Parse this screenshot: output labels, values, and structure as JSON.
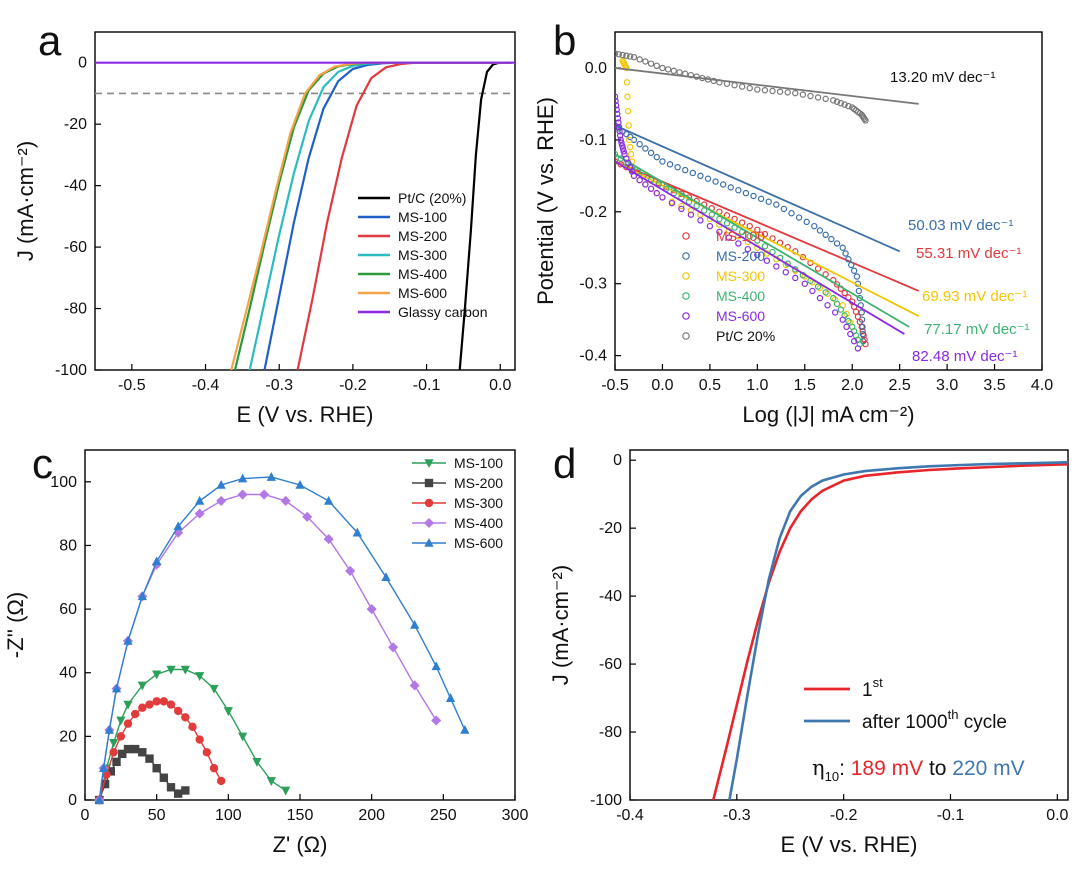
{
  "figure": {
    "panels": {
      "a": {
        "letter": "a"
      },
      "b": {
        "letter": "b"
      },
      "c": {
        "letter": "c"
      },
      "d": {
        "letter": "d"
      }
    }
  },
  "chart_data": [
    {
      "id": "a",
      "type": "line",
      "title": "",
      "xlabel": "E (V vs. RHE)",
      "ylabel": "J (mA·cm⁻²)",
      "xlim": [
        -0.55,
        0.02
      ],
      "ylim": [
        -100,
        10
      ],
      "xticks": [
        -0.5,
        -0.4,
        -0.3,
        -0.2,
        -0.1,
        0.0
      ],
      "xtick_labels": [
        "-0.5",
        "-0.4",
        "-0.3",
        "-0.2",
        "-0.1",
        "0.0"
      ],
      "yticks": [
        0,
        -20,
        -40,
        -60,
        -80,
        -100
      ],
      "ytick_labels": [
        "0",
        "-20",
        "-40",
        "-60",
        "-80",
        "-100"
      ],
      "reference_line": {
        "y": -10,
        "style": "dashed",
        "color": "#888888"
      },
      "legend_position": "right",
      "series": [
        {
          "name": "Pt/C (20%)",
          "color": "#000000",
          "x": [
            -0.055,
            -0.048,
            -0.04,
            -0.033,
            -0.026,
            -0.018,
            -0.01,
            -0.003,
            0.005,
            0.015
          ],
          "y": [
            -100,
            -80,
            -55,
            -30,
            -12,
            -3,
            -0.6,
            -0.1,
            0,
            0
          ]
        },
        {
          "name": "MS-100",
          "color": "#1f5fc8",
          "x": [
            -0.32,
            -0.3,
            -0.28,
            -0.26,
            -0.24,
            -0.22,
            -0.2,
            -0.18,
            -0.16,
            -0.14,
            0.015
          ],
          "y": [
            -100,
            -76,
            -52,
            -31,
            -15,
            -6,
            -2,
            -0.7,
            -0.2,
            0,
            0
          ]
        },
        {
          "name": "MS-200",
          "color": "#e0393e",
          "x": [
            -0.275,
            -0.255,
            -0.235,
            -0.215,
            -0.195,
            -0.175,
            -0.155,
            -0.135,
            -0.115,
            0.015
          ],
          "y": [
            -100,
            -77,
            -52,
            -31,
            -14,
            -5,
            -1.5,
            -0.4,
            0,
            0
          ]
        },
        {
          "name": "MS-300",
          "color": "#2bbbc0",
          "x": [
            -0.34,
            -0.32,
            -0.3,
            -0.28,
            -0.26,
            -0.24,
            -0.22,
            -0.2,
            -0.18,
            -0.16,
            0.015
          ],
          "y": [
            -100,
            -78,
            -56,
            -36,
            -19,
            -8,
            -3,
            -1,
            -0.3,
            0,
            0
          ]
        },
        {
          "name": "MS-400",
          "color": "#2a9a3a",
          "x": [
            -0.36,
            -0.34,
            -0.32,
            -0.3,
            -0.28,
            -0.26,
            -0.24,
            -0.22,
            -0.2,
            -0.18,
            0.015
          ],
          "y": [
            -100,
            -80,
            -59,
            -39,
            -21,
            -9,
            -3.5,
            -1.2,
            -0.4,
            0,
            0
          ]
        },
        {
          "name": "MS-600",
          "color": "#f5a34a",
          "x": [
            -0.365,
            -0.345,
            -0.325,
            -0.305,
            -0.285,
            -0.265,
            -0.245,
            -0.225,
            -0.205,
            -0.185,
            0.015
          ],
          "y": [
            -100,
            -81,
            -62,
            -42,
            -23,
            -10,
            -4,
            -1.3,
            -0.4,
            0,
            0
          ]
        },
        {
          "name": "Glassy carbon",
          "color": "#8a2be2",
          "x": [
            -0.55,
            0.02
          ],
          "y": [
            0,
            0
          ]
        }
      ]
    },
    {
      "id": "b",
      "type": "scatter",
      "title": "",
      "xlabel": "Log (|J| mA cm⁻²)",
      "ylabel": "Potential (V vs. RHE)",
      "xlim": [
        -0.5,
        4.0
      ],
      "ylim": [
        -0.42,
        0.05
      ],
      "xticks": [
        -0.5,
        0.0,
        0.5,
        1.0,
        1.5,
        2.0,
        2.5,
        3.0,
        3.5,
        4.0
      ],
      "xtick_labels": [
        "-0.5",
        "0.0",
        "0.5",
        "1.0",
        "1.5",
        "2.0",
        "2.5",
        "3.0",
        "3.5",
        "4.0"
      ],
      "yticks": [
        0.0,
        -0.1,
        -0.2,
        -0.3,
        -0.4
      ],
      "ytick_labels": [
        "0.0",
        "-0.1",
        "-0.2",
        "-0.3",
        "-0.4"
      ],
      "legend_position": "bottom-left",
      "series": [
        {
          "name": "MS-100",
          "color": "#e0393e",
          "slope_label": "55.31 mV dec⁻¹",
          "fit": [
            [
              -0.5,
              -0.13
            ],
            [
              2.7,
              -0.31
            ]
          ],
          "x": [
            -0.5,
            -0.2,
            0.2,
            0.6,
            1.0,
            1.4,
            1.8,
            2.0,
            2.1,
            2.15
          ],
          "y": [
            -0.13,
            -0.15,
            -0.175,
            -0.2,
            -0.225,
            -0.255,
            -0.295,
            -0.325,
            -0.36,
            -0.39
          ]
        },
        {
          "name": "MS-200",
          "color": "#3a6fa8",
          "slope_label": "50.03 mV dec⁻¹",
          "fit": [
            [
              -0.5,
              -0.08
            ],
            [
              2.5,
              -0.255
            ]
          ],
          "x": [
            -0.5,
            -0.3,
            0.0,
            0.4,
            0.8,
            1.2,
            1.6,
            1.9,
            2.05,
            2.1,
            2.12
          ],
          "y": [
            -0.08,
            -0.1,
            -0.13,
            -0.15,
            -0.17,
            -0.19,
            -0.22,
            -0.25,
            -0.29,
            -0.34,
            -0.39
          ]
        },
        {
          "name": "MS-300",
          "color": "#f2c500",
          "slope_label": "69.93 mV dec⁻¹",
          "fit": [
            [
              -0.5,
              -0.13
            ],
            [
              2.7,
              -0.345
            ]
          ],
          "x": [
            -0.42,
            -0.38,
            -0.35,
            -0.3,
            0.0,
            0.5,
            1.0,
            1.5,
            1.9,
            2.1
          ],
          "y": [
            0.01,
            0.0,
            -0.1,
            -0.15,
            -0.18,
            -0.21,
            -0.25,
            -0.29,
            -0.33,
            -0.39
          ]
        },
        {
          "name": "MS-400",
          "color": "#3cb371",
          "slope_label": "77.17 mV dec⁻¹",
          "fit": [
            [
              -0.5,
              -0.12
            ],
            [
              2.6,
              -0.36
            ]
          ],
          "x": [
            -0.5,
            -0.2,
            0.2,
            0.6,
            1.0,
            1.4,
            1.8,
            2.0,
            2.1
          ],
          "y": [
            -0.12,
            -0.15,
            -0.18,
            -0.21,
            -0.24,
            -0.28,
            -0.32,
            -0.36,
            -0.39
          ]
        },
        {
          "name": "MS-600",
          "color": "#8a2be2",
          "slope_label": "82.48 mV dec⁻¹",
          "fit": [
            [
              -0.5,
              -0.13
            ],
            [
              2.55,
              -0.37
            ]
          ],
          "x": [
            -0.5,
            -0.47,
            -0.44,
            -0.4,
            -0.3,
            0.0,
            0.5,
            1.0,
            1.5,
            1.9,
            2.1
          ],
          "y": [
            -0.04,
            -0.07,
            -0.1,
            -0.12,
            -0.15,
            -0.18,
            -0.22,
            -0.26,
            -0.3,
            -0.35,
            -0.4
          ]
        },
        {
          "name": "Pt/C 20%",
          "color": "#777777",
          "slope_label": "13.20 mV dec⁻¹",
          "fit": [
            [
              -0.5,
              0.0
            ],
            [
              2.7,
              -0.05
            ]
          ],
          "x": [
            -0.5,
            -0.3,
            0.0,
            0.3,
            0.6,
            1.0,
            1.4,
            1.8,
            2.0,
            2.1,
            2.15
          ],
          "y": [
            0.02,
            0.015,
            0.0,
            -0.01,
            -0.02,
            -0.03,
            -0.035,
            -0.045,
            -0.055,
            -0.065,
            -0.075
          ]
        }
      ]
    },
    {
      "id": "c",
      "type": "scatter",
      "title": "",
      "xlabel": "Z' (Ω)",
      "ylabel": "-Z'' (Ω)",
      "xlim": [
        0,
        300
      ],
      "ylim": [
        0,
        110
      ],
      "xticks": [
        0,
        50,
        100,
        150,
        200,
        250,
        300
      ],
      "xtick_labels": [
        "0",
        "50",
        "100",
        "150",
        "200",
        "250",
        "300"
      ],
      "yticks": [
        0,
        20,
        40,
        60,
        80,
        100
      ],
      "ytick_labels": [
        "0",
        "20",
        "40",
        "60",
        "80",
        "100"
      ],
      "legend_position": "top-right",
      "series": [
        {
          "name": "MS-100",
          "color": "#2ca05a",
          "marker": "triangle-down",
          "x": [
            10,
            15,
            20,
            25,
            30,
            40,
            50,
            60,
            70,
            80,
            90,
            100,
            110,
            120,
            130,
            140
          ],
          "y": [
            0,
            10,
            18,
            25,
            30,
            36,
            39.5,
            41,
            41,
            39,
            35,
            28,
            20,
            12,
            6,
            3
          ]
        },
        {
          "name": "MS-200",
          "color": "#444444",
          "marker": "square",
          "x": [
            10,
            14,
            18,
            22,
            26,
            30,
            35,
            40,
            45,
            50,
            55,
            60,
            65,
            70
          ],
          "y": [
            0,
            5,
            9,
            12,
            14.5,
            16,
            16,
            15,
            13,
            10,
            7,
            4,
            2,
            3
          ]
        },
        {
          "name": "MS-300",
          "color": "#e23b3b",
          "marker": "circle",
          "x": [
            10,
            15,
            20,
            25,
            30,
            35,
            40,
            45,
            50,
            55,
            60,
            65,
            70,
            75,
            80,
            85,
            90,
            95
          ],
          "y": [
            0,
            8,
            15,
            20,
            24,
            27,
            29,
            30,
            31,
            31,
            30,
            28,
            26,
            23,
            19,
            15,
            10,
            6
          ]
        },
        {
          "name": "MS-400",
          "color": "#b278e6",
          "marker": "diamond",
          "x": [
            10,
            13,
            17,
            22,
            30,
            40,
            50,
            65,
            80,
            95,
            110,
            125,
            140,
            155,
            170,
            185,
            200,
            215,
            230,
            245
          ],
          "y": [
            0,
            10,
            22,
            35,
            50,
            64,
            74,
            84,
            90,
            94,
            96,
            96,
            94,
            89,
            82,
            72,
            60,
            48,
            36,
            25
          ]
        },
        {
          "name": "MS-600",
          "color": "#2f7fd0",
          "marker": "triangle-up",
          "x": [
            10,
            13,
            17,
            22,
            30,
            40,
            50,
            65,
            80,
            95,
            110,
            130,
            150,
            170,
            190,
            210,
            230,
            245,
            255,
            265
          ],
          "y": [
            0,
            10,
            22,
            35,
            50,
            64,
            75,
            86,
            94,
            99,
            101,
            101.5,
            99,
            94,
            84,
            70,
            55,
            42,
            32,
            22
          ]
        }
      ]
    },
    {
      "id": "d",
      "type": "line",
      "title": "",
      "xlabel": "E (V vs. RHE)",
      "ylabel": "J (mA·cm⁻²)",
      "xlim": [
        -0.4,
        0.01
      ],
      "ylim": [
        -100,
        3
      ],
      "xticks": [
        -0.4,
        -0.3,
        -0.2,
        -0.1,
        0.0
      ],
      "xtick_labels": [
        "-0.4",
        "-0.3",
        "-0.2",
        "-0.1",
        "0.0"
      ],
      "yticks": [
        0,
        -20,
        -40,
        -60,
        -80,
        -100
      ],
      "ytick_labels": [
        "0",
        "-20",
        "-40",
        "-60",
        "-80",
        "-100"
      ],
      "legend_position": "bottom-right",
      "legend": [
        {
          "label": "1",
          "sup": "st",
          "tail": ""
        },
        {
          "label": "after 1000",
          "sup": "th",
          "tail": " cycle"
        }
      ],
      "annotation": {
        "eta": "η",
        "eta_sub": "10",
        "colon": ": ",
        "v1": "189 mV",
        "mid": " to ",
        "v2": "220 mV"
      },
      "series": [
        {
          "name": "1st",
          "color": "#e8252b",
          "x": [
            -0.322,
            -0.31,
            -0.3,
            -0.29,
            -0.28,
            -0.27,
            -0.26,
            -0.25,
            -0.24,
            -0.23,
            -0.22,
            -0.2,
            -0.18,
            -0.15,
            -0.12,
            -0.09,
            -0.06,
            -0.03,
            0.0,
            0.01
          ],
          "y": [
            -100,
            -85,
            -72,
            -59,
            -47,
            -36,
            -27,
            -20,
            -15,
            -11.5,
            -9,
            -6,
            -4.6,
            -3.6,
            -2.9,
            -2.4,
            -2.0,
            -1.6,
            -1.3,
            -1.2
          ]
        },
        {
          "name": "after 1000th cycle",
          "color": "#3f78b0",
          "x": [
            -0.307,
            -0.3,
            -0.29,
            -0.28,
            -0.27,
            -0.26,
            -0.25,
            -0.24,
            -0.23,
            -0.22,
            -0.2,
            -0.18,
            -0.15,
            -0.12,
            -0.09,
            -0.06,
            -0.03,
            0.0,
            0.01
          ],
          "y": [
            -100,
            -88,
            -69,
            -51,
            -35,
            -23,
            -15,
            -10.5,
            -7.8,
            -6,
            -4.2,
            -3.2,
            -2.4,
            -1.8,
            -1.4,
            -1.1,
            -0.9,
            -0.7,
            -0.6
          ]
        }
      ]
    }
  ]
}
